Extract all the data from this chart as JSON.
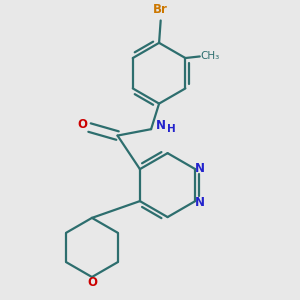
{
  "bg_color": "#e8e8e8",
  "bond_color": "#2d6e6e",
  "N_color": "#2222cc",
  "O_color": "#cc0000",
  "Br_color": "#cc7700",
  "line_width": 1.6,
  "font_size": 8.5,
  "figsize": [
    3.0,
    3.0
  ],
  "dpi": 100,
  "xlim": [
    0.0,
    3.0
  ],
  "ylim": [
    -1.5,
    2.2
  ]
}
